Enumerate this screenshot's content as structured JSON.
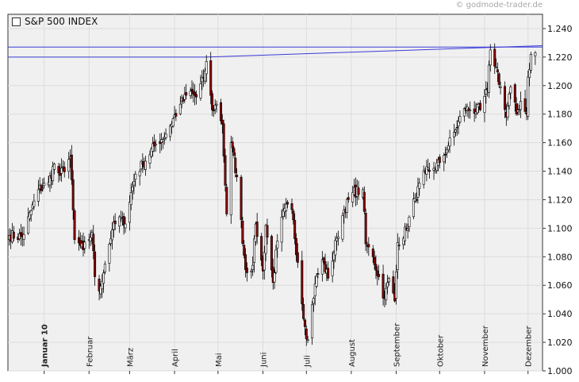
{
  "watermark": "© godmode-trader.de",
  "chart_data": {
    "type": "candlestick",
    "title": "S&P 500 INDEX",
    "x_type": "date",
    "x_range": [
      "2009-12-07",
      "2010-12-11"
    ],
    "y_range": [
      1.0,
      1.25
    ],
    "y_ticks": [
      1.0,
      1.02,
      1.04,
      1.06,
      1.08,
      1.1,
      1.12,
      1.14,
      1.16,
      1.18,
      1.2,
      1.22,
      1.24
    ],
    "y_tick_labels": [
      "1.000",
      "1.020",
      "1.040",
      "1.060",
      "1.080",
      "1.100",
      "1.120",
      "1.140",
      "1.160",
      "1.180",
      "1.200",
      "1.220",
      "1.240"
    ],
    "x_ticks": [
      {
        "label": "Januar 10",
        "date": "2010-01-01",
        "bold": true
      },
      {
        "label": "Februar",
        "date": "2010-02-01"
      },
      {
        "label": "März",
        "date": "2010-03-01"
      },
      {
        "label": "April",
        "date": "2010-04-01"
      },
      {
        "label": "Mai",
        "date": "2010-05-01"
      },
      {
        "label": "Juni",
        "date": "2010-06-01"
      },
      {
        "label": "Juli",
        "date": "2010-07-01"
      },
      {
        "label": "August",
        "date": "2010-08-01"
      },
      {
        "label": "September",
        "date": "2010-09-01"
      },
      {
        "label": "Oktober",
        "date": "2010-10-01"
      },
      {
        "label": "November",
        "date": "2010-11-01"
      },
      {
        "label": "Dezember",
        "date": "2010-12-01"
      }
    ],
    "grid": true,
    "colors": {
      "up": "#ffffff",
      "down": "#8b0000",
      "outline": "#000000",
      "trendline": "#3a3ad8",
      "plot_bg": "#f0f0f0"
    },
    "trendlines": [
      {
        "points": [
          [
            "2009-12-07",
            1.227
          ],
          [
            "2010-12-11",
            1.227
          ]
        ]
      },
      {
        "points": [
          [
            "2009-12-07",
            1.22
          ],
          [
            "2010-04-23",
            1.22
          ],
          [
            "2010-12-11",
            1.228
          ]
        ]
      }
    ],
    "close_keypoints": [
      [
        "2009-12-08",
        1.095
      ],
      [
        "2009-12-17",
        1.094
      ],
      [
        "2009-12-28",
        1.127
      ],
      [
        "2010-01-04",
        1.132
      ],
      [
        "2010-01-08",
        1.145
      ],
      [
        "2010-01-12",
        1.137
      ],
      [
        "2010-01-19",
        1.15
      ],
      [
        "2010-01-22",
        1.092
      ],
      [
        "2010-01-28",
        1.085
      ],
      [
        "2010-02-03",
        1.097
      ],
      [
        "2010-02-05",
        1.066
      ],
      [
        "2010-02-08",
        1.056
      ],
      [
        "2010-02-12",
        1.075
      ],
      [
        "2010-02-17",
        1.099
      ],
      [
        "2010-02-22",
        1.108
      ],
      [
        "2010-02-25",
        1.102
      ],
      [
        "2010-03-05",
        1.138
      ],
      [
        "2010-03-10",
        1.145
      ],
      [
        "2010-03-19",
        1.159
      ],
      [
        "2010-03-26",
        1.166
      ],
      [
        "2010-04-05",
        1.187
      ],
      [
        "2010-04-12",
        1.196
      ],
      [
        "2010-04-16",
        1.192
      ],
      [
        "2010-04-21",
        1.205
      ],
      [
        "2010-04-23",
        1.217
      ],
      [
        "2010-04-27",
        1.183
      ],
      [
        "2010-04-30",
        1.187
      ],
      [
        "2010-05-04",
        1.173
      ],
      [
        "2010-05-07",
        1.11
      ],
      [
        "2010-05-10",
        1.16
      ],
      [
        "2010-05-14",
        1.136
      ],
      [
        "2010-05-20",
        1.071
      ],
      [
        "2010-05-25",
        1.074
      ],
      [
        "2010-05-27",
        1.103
      ],
      [
        "2010-06-01",
        1.07
      ],
      [
        "2010-06-03",
        1.102
      ],
      [
        "2010-06-08",
        1.062
      ],
      [
        "2010-06-11",
        1.091
      ],
      [
        "2010-06-16",
        1.114
      ],
      [
        "2010-06-21",
        1.113
      ],
      [
        "2010-06-25",
        1.076
      ],
      [
        "2010-06-30",
        1.031
      ],
      [
        "2010-07-02",
        1.022
      ],
      [
        "2010-07-07",
        1.061
      ],
      [
        "2010-07-12",
        1.078
      ],
      [
        "2010-07-16",
        1.065
      ],
      [
        "2010-07-22",
        1.093
      ],
      [
        "2010-07-27",
        1.113
      ],
      [
        "2010-08-02",
        1.125
      ],
      [
        "2010-08-09",
        1.127
      ],
      [
        "2010-08-11",
        1.089
      ],
      [
        "2010-08-16",
        1.08
      ],
      [
        "2010-08-24",
        1.051
      ],
      [
        "2010-08-27",
        1.065
      ],
      [
        "2010-08-31",
        1.049
      ],
      [
        "2010-09-02",
        1.09
      ],
      [
        "2010-09-08",
        1.099
      ],
      [
        "2010-09-14",
        1.121
      ],
      [
        "2010-09-21",
        1.139
      ],
      [
        "2010-09-27",
        1.142
      ],
      [
        "2010-10-01",
        1.146
      ],
      [
        "2010-10-07",
        1.158
      ],
      [
        "2010-10-12",
        1.169
      ],
      [
        "2010-10-18",
        1.184
      ],
      [
        "2010-10-22",
        1.183
      ],
      [
        "2010-10-29",
        1.183
      ],
      [
        "2010-11-03",
        1.197
      ],
      [
        "2010-11-05",
        1.225
      ],
      [
        "2010-11-09",
        1.213
      ],
      [
        "2010-11-12",
        1.199
      ],
      [
        "2010-11-16",
        1.178
      ],
      [
        "2010-11-19",
        1.199
      ],
      [
        "2010-11-23",
        1.18
      ],
      [
        "2010-11-26",
        1.189
      ],
      [
        "2010-11-30",
        1.18
      ],
      [
        "2010-12-01",
        1.206
      ],
      [
        "2010-12-03",
        1.222
      ],
      [
        "2010-12-06",
        1.223
      ]
    ]
  }
}
